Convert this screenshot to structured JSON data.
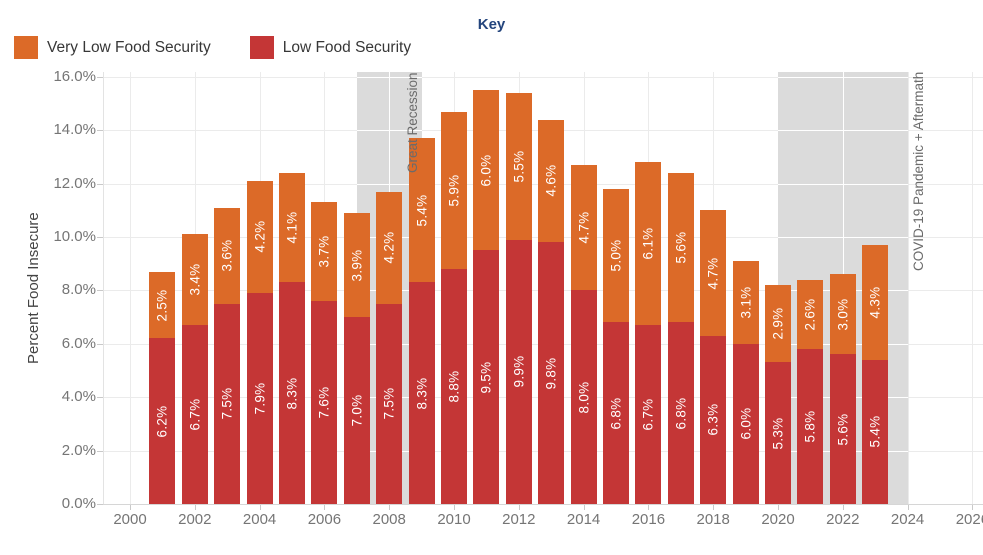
{
  "key": {
    "title": "Key",
    "items": [
      {
        "label": "Very Low Food Security",
        "color": "#DC6A28"
      },
      {
        "label": "Low Food Security",
        "color": "#C43636"
      }
    ]
  },
  "colors": {
    "orange": "#DC6A28",
    "red": "#C43636",
    "band_gray": "#DBDBDB",
    "gridline": "#EBEBEB",
    "baseline": "#D6D6D6",
    "tick": "#C9C9C9",
    "tick_text": "#757575",
    "annotation_text": "#6B6B6B",
    "legend_text": "#373737",
    "key_title": "#24457D"
  },
  "chart_data": {
    "type": "bar",
    "stacked": true,
    "title": "Key",
    "xlabel": "",
    "ylabel": "Percent Food Insecure",
    "legend_position": "top-left",
    "grid": true,
    "ylim": [
      0,
      16.2
    ],
    "xlim": [
      1999.2,
      2026.3
    ],
    "y_ticks": [
      0,
      2,
      4,
      6,
      8,
      10,
      12,
      14,
      16
    ],
    "y_tick_labels": [
      "0.0%",
      "2.0%",
      "4.0%",
      "6.0%",
      "8.0%",
      "10.0%",
      "12.0%",
      "14.0%",
      "16.0%"
    ],
    "x_ticks": [
      2000,
      2002,
      2004,
      2006,
      2008,
      2010,
      2012,
      2014,
      2016,
      2018,
      2020,
      2022,
      2024,
      2026
    ],
    "x_tick_labels": [
      "2000",
      "2002",
      "2004",
      "2006",
      "2008",
      "2010",
      "2012",
      "2014",
      "2016",
      "2018",
      "2020",
      "2022",
      "2024",
      "2026"
    ],
    "categories": [
      2001,
      2002,
      2003,
      2004,
      2005,
      2006,
      2007,
      2008,
      2009,
      2010,
      2011,
      2012,
      2013,
      2014,
      2015,
      2016,
      2017,
      2018,
      2019,
      2020,
      2021,
      2022,
      2023
    ],
    "series": [
      {
        "name": "Low Food Security",
        "color": "#C43636",
        "values": [
          6.2,
          6.7,
          7.5,
          7.9,
          8.3,
          7.6,
          7.0,
          7.5,
          8.3,
          8.8,
          9.5,
          9.9,
          9.8,
          8.0,
          6.8,
          6.7,
          6.8,
          6.3,
          6.0,
          5.3,
          5.8,
          5.6,
          5.4
        ],
        "labels": [
          "6.2%",
          "6.7%",
          "7.5%",
          "7.9%",
          "8.3%",
          "7.6%",
          "7.0%",
          "7.5%",
          "8.3%",
          "8.8%",
          "9.5%",
          "9.9%",
          "9.8%",
          "8.0%",
          "6.8%",
          "6.7%",
          "6.8%",
          "6.3%",
          "6.0%",
          "5.3%",
          "5.8%",
          "5.6%",
          "5.4%"
        ]
      },
      {
        "name": "Very Low Food Security",
        "color": "#DC6A28",
        "values": [
          2.5,
          3.4,
          3.6,
          4.2,
          4.1,
          3.7,
          3.9,
          4.2,
          5.4,
          5.9,
          6.0,
          5.5,
          4.6,
          4.7,
          5.0,
          6.1,
          5.6,
          4.7,
          3.1,
          2.9,
          2.6,
          3.0,
          4.3
        ],
        "labels": [
          "2.5%",
          "3.4%",
          "3.6%",
          "4.2%",
          "4.1%",
          "3.7%",
          "3.9%",
          "4.2%",
          "5.4%",
          "5.9%",
          "6.0%",
          "5.5%",
          "4.6%",
          "4.7%",
          "5.0%",
          "6.1%",
          "5.6%",
          "4.7%",
          "3.1%",
          "2.9%",
          "2.6%",
          "3.0%",
          "4.3%"
        ]
      }
    ],
    "bands": [
      {
        "from": 2007,
        "to": 2009,
        "label": "Great Recession"
      },
      {
        "from": 2020,
        "to": 2024,
        "label": "COVID-19 Pandemic + Aftermath"
      }
    ]
  }
}
